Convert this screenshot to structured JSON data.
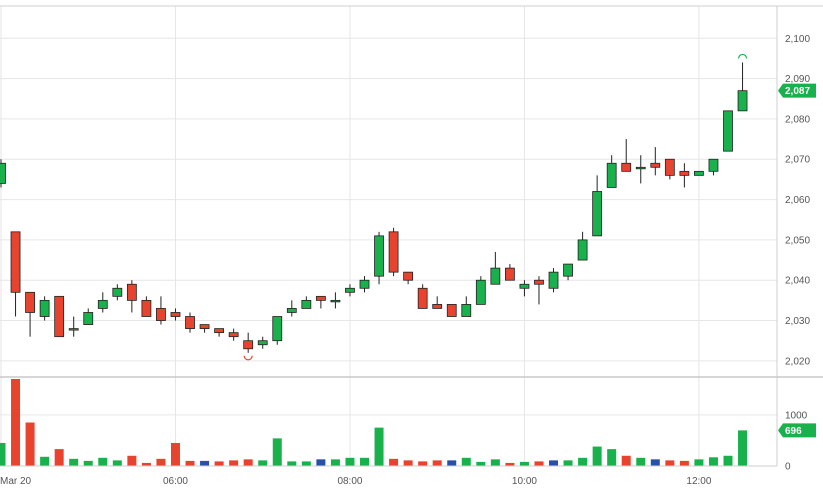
{
  "chart_data": {
    "type": "candlestick",
    "title": "",
    "x_tick_labels": [
      "Mar 20",
      "06:00",
      "08:00",
      "10:00",
      "12:00"
    ],
    "y_ticks": [
      2020,
      2030,
      2040,
      2050,
      2060,
      2070,
      2080,
      2090,
      2100
    ],
    "y_tick_labels": [
      "2,020",
      "2,030",
      "2,040",
      "2,050",
      "2,060",
      "2,070",
      "2,080",
      "2,090",
      "2,100"
    ],
    "ylim": [
      2016,
      2108
    ],
    "last_price_label": "2,087",
    "last_volume_label": "696",
    "volume_axis": {
      "ticks": [
        0,
        1000
      ],
      "tick_labels": [
        "0",
        "1000"
      ],
      "ylim": [
        0,
        1700
      ]
    },
    "colors": {
      "up": "#19b14b",
      "down": "#e8432e",
      "neutral": "#2850a8",
      "grid": "#e6e6e6"
    },
    "candles": [
      {
        "o": 2064,
        "h": 2070,
        "l": 2063,
        "c": 2069,
        "v": 450
      },
      {
        "o": 2052,
        "h": 2052,
        "l": 2031,
        "c": 2037,
        "v": 1700
      },
      {
        "o": 2037,
        "h": 2037,
        "l": 2026,
        "c": 2032,
        "v": 850
      },
      {
        "o": 2031,
        "h": 2036,
        "l": 2030,
        "c": 2035,
        "v": 180
      },
      {
        "o": 2036,
        "h": 2036,
        "l": 2026,
        "c": 2026,
        "v": 330
      },
      {
        "o": 2028,
        "h": 2031,
        "l": 2026,
        "c": 2028,
        "v": 140
      },
      {
        "o": 2029,
        "h": 2033,
        "l": 2029,
        "c": 2032,
        "v": 100
      },
      {
        "o": 2033,
        "h": 2037,
        "l": 2032,
        "c": 2035,
        "v": 160
      },
      {
        "o": 2036,
        "h": 2039,
        "l": 2035,
        "c": 2038,
        "v": 110
      },
      {
        "o": 2039,
        "h": 2040,
        "l": 2032,
        "c": 2035,
        "v": 200
      },
      {
        "o": 2035,
        "h": 2036,
        "l": 2031,
        "c": 2031,
        "v": 60
      },
      {
        "o": 2033,
        "h": 2036,
        "l": 2029,
        "c": 2030,
        "v": 140
      },
      {
        "o": 2032,
        "h": 2033,
        "l": 2030,
        "c": 2031,
        "v": 450
      },
      {
        "o": 2031,
        "h": 2032,
        "l": 2027,
        "c": 2028,
        "v": 100
      },
      {
        "o": 2029,
        "h": 2029,
        "l": 2027,
        "c": 2028,
        "v": 100,
        "n": true
      },
      {
        "o": 2028,
        "h": 2028,
        "l": 2026,
        "c": 2027,
        "v": 90
      },
      {
        "o": 2027,
        "h": 2028,
        "l": 2025,
        "c": 2026,
        "v": 110
      },
      {
        "o": 2025,
        "h": 2027,
        "l": 2022,
        "c": 2023,
        "v": 130
      },
      {
        "o": 2024,
        "h": 2026,
        "l": 2023,
        "c": 2025,
        "v": 110
      },
      {
        "o": 2025,
        "h": 2031,
        "l": 2024,
        "c": 2031,
        "v": 540
      },
      {
        "o": 2032,
        "h": 2035,
        "l": 2031,
        "c": 2033,
        "v": 90
      },
      {
        "o": 2033,
        "h": 2036,
        "l": 2033,
        "c": 2035,
        "v": 90
      },
      {
        "o": 2036,
        "h": 2036,
        "l": 2033,
        "c": 2035,
        "v": 130,
        "n": true
      },
      {
        "o": 2035,
        "h": 2037,
        "l": 2033,
        "c": 2035,
        "v": 130
      },
      {
        "o": 2037,
        "h": 2039,
        "l": 2036,
        "c": 2038,
        "v": 160
      },
      {
        "o": 2038,
        "h": 2041,
        "l": 2037,
        "c": 2040,
        "v": 160
      },
      {
        "o": 2041,
        "h": 2052,
        "l": 2039,
        "c": 2051,
        "v": 750
      },
      {
        "o": 2052,
        "h": 2053,
        "l": 2041,
        "c": 2042,
        "v": 140
      },
      {
        "o": 2042,
        "h": 2042,
        "l": 2039,
        "c": 2040,
        "v": 110
      },
      {
        "o": 2038,
        "h": 2039,
        "l": 2033,
        "c": 2033,
        "v": 90
      },
      {
        "o": 2034,
        "h": 2036,
        "l": 2033,
        "c": 2033,
        "v": 110
      },
      {
        "o": 2034,
        "h": 2034,
        "l": 2031,
        "c": 2031,
        "v": 110,
        "n": true
      },
      {
        "o": 2031,
        "h": 2036,
        "l": 2031,
        "c": 2034,
        "v": 160
      },
      {
        "o": 2034,
        "h": 2041,
        "l": 2034,
        "c": 2040,
        "v": 80
      },
      {
        "o": 2039,
        "h": 2047,
        "l": 2039,
        "c": 2043,
        "v": 130
      },
      {
        "o": 2043,
        "h": 2044,
        "l": 2040,
        "c": 2040,
        "v": 60
      },
      {
        "o": 2038,
        "h": 2040,
        "l": 2036,
        "c": 2039,
        "v": 80
      },
      {
        "o": 2040,
        "h": 2041,
        "l": 2034,
        "c": 2039,
        "v": 90
      },
      {
        "o": 2038,
        "h": 2043,
        "l": 2037,
        "c": 2042,
        "v": 110,
        "n": true
      },
      {
        "o": 2041,
        "h": 2044,
        "l": 2040,
        "c": 2044,
        "v": 110
      },
      {
        "o": 2045,
        "h": 2052,
        "l": 2045,
        "c": 2050,
        "v": 160
      },
      {
        "o": 2051,
        "h": 2066,
        "l": 2051,
        "c": 2062,
        "v": 380
      },
      {
        "o": 2063,
        "h": 2071,
        "l": 2063,
        "c": 2069,
        "v": 330
      },
      {
        "o": 2069,
        "h": 2075,
        "l": 2067,
        "c": 2067,
        "v": 200
      },
      {
        "o": 2068,
        "h": 2071,
        "l": 2064,
        "c": 2068,
        "v": 160
      },
      {
        "o": 2069,
        "h": 2073,
        "l": 2066,
        "c": 2068,
        "v": 130,
        "n": true
      },
      {
        "o": 2070,
        "h": 2070,
        "l": 2065,
        "c": 2066,
        "v": 110
      },
      {
        "o": 2067,
        "h": 2069,
        "l": 2063,
        "c": 2066,
        "v": 100
      },
      {
        "o": 2066,
        "h": 2067,
        "l": 2066,
        "c": 2067,
        "v": 130
      },
      {
        "o": 2067,
        "h": 2070,
        "l": 2066,
        "c": 2070,
        "v": 170
      },
      {
        "o": 2072,
        "h": 2082,
        "l": 2072,
        "c": 2082,
        "v": 200
      },
      {
        "o": 2082,
        "h": 2094,
        "l": 2082,
        "c": 2087,
        "v": 696
      }
    ]
  }
}
